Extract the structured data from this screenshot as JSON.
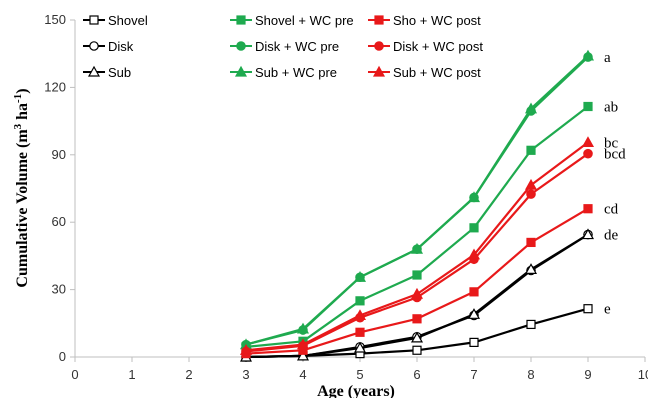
{
  "chart_data": {
    "type": "line",
    "title": "",
    "xlabel": "Age (years)",
    "ylabel": "Cumulative Volume (m³ ha⁻¹)",
    "ylabel_parts": {
      "before": "Cumulative Volume (m",
      "sup1": "3",
      "mid": " ha",
      "sup2": "-1",
      "after": ")"
    },
    "xlim": [
      0,
      10
    ],
    "ylim": [
      0,
      150
    ],
    "xticks": [
      0,
      1,
      2,
      3,
      4,
      5,
      6,
      7,
      8,
      9,
      10
    ],
    "yticks": [
      0,
      30,
      60,
      90,
      120,
      150
    ],
    "grid": false,
    "legend_position": "top",
    "x": [
      3,
      4,
      5,
      6,
      7,
      8,
      9
    ],
    "series": [
      {
        "name": "Shovel",
        "color": "#000000",
        "marker": "square-open",
        "letter": "e",
        "values": [
          0,
          0.5,
          1.5,
          3,
          6.5,
          14.5,
          21.5
        ]
      },
      {
        "name": "Disk",
        "color": "#000000",
        "marker": "circle-open",
        "letter": "de",
        "values": [
          0,
          0.5,
          4.5,
          9,
          18.5,
          38.5,
          54.5
        ]
      },
      {
        "name": "Sub",
        "color": "#000000",
        "marker": "triangle-open",
        "letter": "",
        "values": [
          0,
          0.5,
          4,
          8.5,
          19,
          39,
          54.5
        ]
      },
      {
        "name": "Shovel + WC pre",
        "color": "#1faa4f",
        "marker": "square",
        "letter": "ab",
        "values": [
          4.5,
          7,
          25,
          36.5,
          57.5,
          92,
          111.5
        ]
      },
      {
        "name": "Disk + WC pre",
        "color": "#1faa4f",
        "marker": "circle",
        "letter": "a",
        "values": [
          5.5,
          12,
          35.5,
          48,
          71,
          109.5,
          133.5
        ]
      },
      {
        "name": "Sub + WC pre",
        "color": "#1faa4f",
        "marker": "triangle",
        "letter": "",
        "values": [
          5.5,
          12.5,
          35.5,
          48,
          71,
          110.5,
          134
        ]
      },
      {
        "name": "Sho + WC post",
        "color": "#e8191a",
        "marker": "square",
        "letter": "cd",
        "values": [
          1.5,
          3,
          11,
          17,
          29,
          51,
          66
        ]
      },
      {
        "name": "Disk + WC post",
        "color": "#e8191a",
        "marker": "circle",
        "letter": "bcd",
        "values": [
          2.5,
          5,
          17.5,
          26.5,
          43.5,
          72.5,
          90.5
        ]
      },
      {
        "name": "Sub + WC post",
        "color": "#e8191a",
        "marker": "triangle",
        "letter": "bc",
        "values": [
          3,
          5.5,
          18.5,
          28,
          45.5,
          76.5,
          95.5
        ]
      }
    ]
  }
}
